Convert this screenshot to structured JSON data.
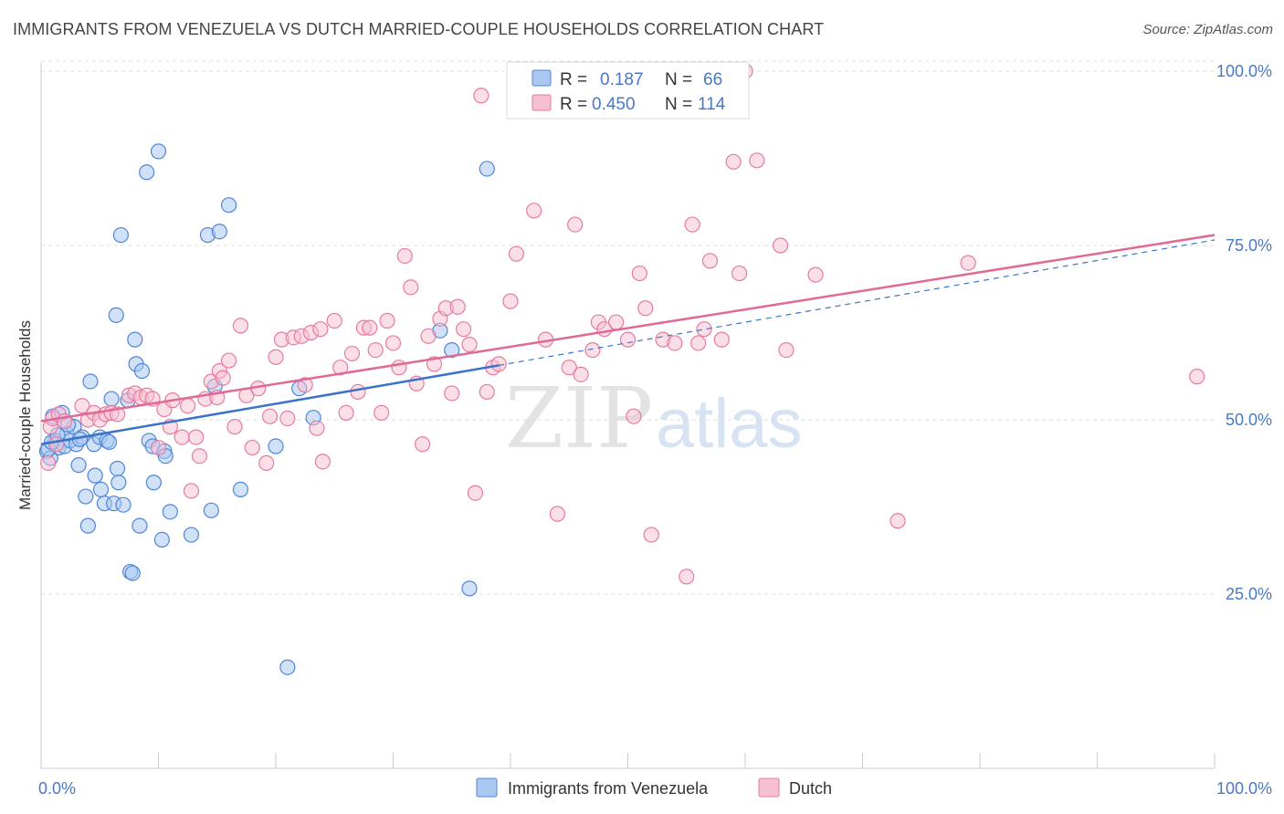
{
  "title": "IMMIGRANTS FROM VENEZUELA VS DUTCH MARRIED-COUPLE HOUSEHOLDS CORRELATION CHART",
  "source": "Source: ZipAtlas.com",
  "watermark": {
    "zip": "ZIP",
    "atlas": "atlas"
  },
  "colors": {
    "blue_fill": "#aac8f2",
    "blue_stroke": "#4f86d6",
    "blue_line": "#3a74c8",
    "pink_fill": "#f7c0d0",
    "pink_stroke": "#e67ba0",
    "pink_line": "#e06a95",
    "tick_text": "#4a78c4",
    "grid": "#dddddd"
  },
  "legend": {
    "rows": [
      {
        "r_label": "R =",
        "r_value": "0.187",
        "n_label": "N =",
        "n_value": "66"
      },
      {
        "r_label": "R =",
        "r_value": "0.450",
        "n_label": "N =",
        "n_value": "114"
      }
    ]
  },
  "bottom_legend": [
    "Immigrants from Venezuela",
    "Dutch"
  ],
  "chart_data": {
    "type": "scatter",
    "title": "IMMIGRANTS FROM VENEZUELA VS DUTCH MARRIED-COUPLE HOUSEHOLDS CORRELATION CHART",
    "xlabel": "",
    "ylabel": "Married-couple Households",
    "xlim": [
      0,
      100
    ],
    "ylim": [
      0,
      102
    ],
    "x_tick_labels": [
      {
        "value": 0,
        "label": "0.0%"
      },
      {
        "value": 100,
        "label": "100.0%"
      }
    ],
    "y_tick_labels": [
      {
        "value": 25,
        "label": "25.0%"
      },
      {
        "value": 50,
        "label": "50.0%"
      },
      {
        "value": 75,
        "label": "75.0%"
      },
      {
        "value": 100,
        "label": "100.0%"
      }
    ],
    "grid": true,
    "legend_placement": "top-center",
    "series": [
      {
        "name": "Immigrants from Venezuela",
        "R": 0.187,
        "N": 66,
        "trend": {
          "x": [
            0,
            39
          ],
          "y": [
            46.5,
            57.8
          ]
        },
        "trend_dashed": {
          "x": [
            39,
            100
          ],
          "y": [
            57.8,
            75.8
          ]
        },
        "points": [
          [
            0.5,
            45.5
          ],
          [
            0.8,
            44.5
          ],
          [
            1.0,
            50.5
          ],
          [
            1.2,
            47.0
          ],
          [
            1.5,
            46.0
          ],
          [
            1.8,
            51.0
          ],
          [
            2.0,
            46.2
          ],
          [
            2.2,
            48.0
          ],
          [
            2.5,
            47.0
          ],
          [
            2.8,
            49.0
          ],
          [
            3.0,
            46.5
          ],
          [
            3.2,
            43.5
          ],
          [
            3.5,
            47.5
          ],
          [
            3.8,
            39.0
          ],
          [
            4.0,
            34.8
          ],
          [
            4.2,
            55.5
          ],
          [
            4.5,
            46.5
          ],
          [
            4.6,
            42.0
          ],
          [
            5.0,
            47.5
          ],
          [
            5.1,
            40.0
          ],
          [
            5.4,
            38.0
          ],
          [
            5.6,
            47.0
          ],
          [
            5.8,
            46.8
          ],
          [
            6.0,
            53.0
          ],
          [
            6.2,
            38.0
          ],
          [
            6.4,
            65.0
          ],
          [
            6.5,
            43.0
          ],
          [
            6.6,
            41.0
          ],
          [
            6.8,
            76.5
          ],
          [
            7.0,
            37.8
          ],
          [
            7.4,
            52.8
          ],
          [
            7.6,
            28.2
          ],
          [
            7.8,
            28.0
          ],
          [
            8.0,
            61.5
          ],
          [
            8.1,
            58.0
          ],
          [
            8.4,
            34.8
          ],
          [
            8.6,
            57.0
          ],
          [
            9.0,
            85.5
          ],
          [
            9.2,
            47.0
          ],
          [
            9.5,
            46.2
          ],
          [
            9.6,
            41.0
          ],
          [
            10.0,
            88.5
          ],
          [
            10.3,
            32.8
          ],
          [
            10.5,
            45.5
          ],
          [
            10.6,
            44.8
          ],
          [
            11.0,
            36.8
          ],
          [
            12.8,
            33.5
          ],
          [
            14.2,
            76.5
          ],
          [
            14.5,
            37.0
          ],
          [
            14.8,
            54.8
          ],
          [
            15.2,
            77.0
          ],
          [
            16.0,
            80.8
          ],
          [
            17.0,
            40.0
          ],
          [
            20.0,
            46.2
          ],
          [
            21.0,
            14.5
          ],
          [
            22.0,
            54.5
          ],
          [
            23.2,
            50.3
          ],
          [
            34.0,
            62.8
          ],
          [
            35.0,
            60.0
          ],
          [
            36.5,
            25.8
          ],
          [
            38.0,
            86.0
          ],
          [
            0.6,
            45.8
          ],
          [
            0.9,
            46.8
          ],
          [
            1.4,
            47.8
          ],
          [
            2.3,
            49.3
          ],
          [
            3.3,
            47.2
          ]
        ]
      },
      {
        "name": "Dutch",
        "R": 0.45,
        "N": 114,
        "trend": {
          "x": [
            0,
            100
          ],
          "y": [
            49.8,
            76.5
          ]
        },
        "points": [
          [
            0.6,
            43.8
          ],
          [
            0.8,
            49.0
          ],
          [
            1.0,
            50.2
          ],
          [
            1.5,
            50.8
          ],
          [
            2.0,
            49.8
          ],
          [
            3.5,
            52.0
          ],
          [
            4.0,
            50.0
          ],
          [
            4.5,
            51.0
          ],
          [
            5.0,
            50.0
          ],
          [
            5.5,
            50.8
          ],
          [
            6.0,
            51.0
          ],
          [
            6.5,
            50.8
          ],
          [
            7.5,
            53.5
          ],
          [
            8.0,
            53.8
          ],
          [
            8.5,
            53.2
          ],
          [
            9.0,
            53.5
          ],
          [
            9.5,
            53.0
          ],
          [
            10.0,
            46.0
          ],
          [
            10.5,
            51.5
          ],
          [
            11.0,
            49.0
          ],
          [
            11.2,
            52.8
          ],
          [
            12.0,
            47.5
          ],
          [
            12.5,
            52.0
          ],
          [
            12.8,
            39.8
          ],
          [
            13.2,
            47.5
          ],
          [
            13.5,
            44.8
          ],
          [
            14.0,
            53.0
          ],
          [
            14.5,
            55.5
          ],
          [
            15.0,
            53.2
          ],
          [
            15.2,
            57.0
          ],
          [
            15.5,
            56.0
          ],
          [
            16.0,
            58.5
          ],
          [
            16.5,
            49.0
          ],
          [
            17.0,
            63.5
          ],
          [
            17.5,
            53.5
          ],
          [
            18.0,
            46.0
          ],
          [
            18.5,
            54.5
          ],
          [
            19.2,
            43.8
          ],
          [
            19.5,
            50.5
          ],
          [
            20.0,
            59.0
          ],
          [
            20.5,
            61.5
          ],
          [
            21.0,
            50.2
          ],
          [
            21.5,
            61.8
          ],
          [
            22.2,
            62.0
          ],
          [
            22.5,
            55.0
          ],
          [
            23.0,
            62.5
          ],
          [
            23.5,
            48.8
          ],
          [
            23.8,
            63.0
          ],
          [
            24.0,
            44.0
          ],
          [
            25.0,
            64.2
          ],
          [
            25.5,
            57.5
          ],
          [
            26.0,
            51.0
          ],
          [
            26.5,
            59.5
          ],
          [
            27.0,
            54.0
          ],
          [
            27.5,
            63.2
          ],
          [
            28.0,
            63.2
          ],
          [
            28.5,
            60.0
          ],
          [
            29.0,
            51.0
          ],
          [
            29.5,
            64.2
          ],
          [
            30.0,
            61.0
          ],
          [
            30.5,
            57.5
          ],
          [
            31.0,
            73.5
          ],
          [
            31.5,
            69.0
          ],
          [
            32.0,
            55.2
          ],
          [
            32.5,
            46.5
          ],
          [
            33.0,
            62.0
          ],
          [
            33.5,
            58.0
          ],
          [
            34.0,
            64.5
          ],
          [
            34.5,
            66.0
          ],
          [
            35.0,
            53.8
          ],
          [
            35.5,
            66.2
          ],
          [
            36.0,
            63.0
          ],
          [
            36.5,
            60.8
          ],
          [
            37.0,
            39.5
          ],
          [
            37.5,
            96.5
          ],
          [
            38.0,
            54.0
          ],
          [
            38.5,
            57.5
          ],
          [
            39.0,
            58.0
          ],
          [
            40.0,
            67.0
          ],
          [
            40.5,
            73.8
          ],
          [
            42.0,
            80.0
          ],
          [
            43.0,
            61.5
          ],
          [
            44.0,
            36.5
          ],
          [
            45.0,
            57.5
          ],
          [
            45.5,
            78.0
          ],
          [
            46.0,
            56.5
          ],
          [
            47.0,
            60.0
          ],
          [
            47.5,
            64.0
          ],
          [
            48.0,
            63.0
          ],
          [
            49.0,
            64.0
          ],
          [
            50.0,
            61.5
          ],
          [
            50.5,
            50.5
          ],
          [
            51.0,
            71.0
          ],
          [
            51.5,
            66.0
          ],
          [
            52.0,
            33.5
          ],
          [
            53.0,
            61.5
          ],
          [
            54.0,
            61.0
          ],
          [
            55.0,
            27.5
          ],
          [
            55.5,
            78.0
          ],
          [
            56.0,
            61.0
          ],
          [
            56.5,
            63.0
          ],
          [
            57.0,
            72.8
          ],
          [
            58.0,
            61.5
          ],
          [
            59.0,
            87.0
          ],
          [
            59.5,
            71.0
          ],
          [
            61.0,
            87.2
          ],
          [
            63.0,
            75.0
          ],
          [
            63.5,
            60.0
          ],
          [
            66.0,
            70.8
          ],
          [
            73.0,
            35.5
          ],
          [
            79.0,
            72.5
          ],
          [
            98.5,
            56.2
          ],
          [
            60.0,
            100.0
          ],
          [
            1.3,
            46.5
          ]
        ]
      }
    ]
  }
}
